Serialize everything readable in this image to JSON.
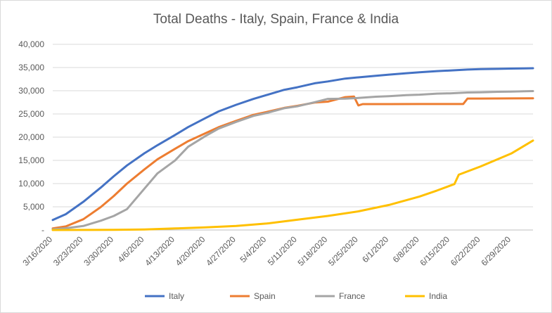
{
  "chart_data": {
    "type": "line",
    "title": "Total Deaths - Italy, Spain, France & India",
    "xlabel": "",
    "ylabel": "",
    "ylim": [
      0,
      40000
    ],
    "y_ticks": [
      "-",
      "5,000",
      "10,000",
      "15,000",
      "20,000",
      "25,000",
      "30,000",
      "35,000",
      "40,000"
    ],
    "x_ticks": [
      "3/16/2020",
      "3/23/2020",
      "3/30/2020",
      "4/6/2020",
      "4/13/2020",
      "4/20/2020",
      "4/27/2020",
      "5/4/2020",
      "5/11/2020",
      "5/18/2020",
      "5/25/2020",
      "6/1/2020",
      "6/8/2020",
      "6/15/2020",
      "6/22/2020",
      "6/29/2020"
    ],
    "x_start": "3/16/2020",
    "x_end": "7/4/2020",
    "grid": true,
    "legend_position": "bottom",
    "series": [
      {
        "name": "Italy",
        "color": "#4472c4",
        "points": [
          [
            "3/16/2020",
            2158
          ],
          [
            "3/19/2020",
            3405
          ],
          [
            "3/23/2020",
            6077
          ],
          [
            "3/27/2020",
            9134
          ],
          [
            "3/30/2020",
            11591
          ],
          [
            "4/2/2020",
            13915
          ],
          [
            "4/6/2020",
            16523
          ],
          [
            "4/9/2020",
            18279
          ],
          [
            "4/13/2020",
            20465
          ],
          [
            "4/16/2020",
            22170
          ],
          [
            "4/20/2020",
            24114
          ],
          [
            "4/23/2020",
            25549
          ],
          [
            "4/27/2020",
            26977
          ],
          [
            "5/1/2020",
            28236
          ],
          [
            "5/4/2020",
            29079
          ],
          [
            "5/8/2020",
            30201
          ],
          [
            "5/11/2020",
            30739
          ],
          [
            "5/15/2020",
            31610
          ],
          [
            "5/18/2020",
            32007
          ],
          [
            "5/22/2020",
            32616
          ],
          [
            "5/25/2020",
            32877
          ],
          [
            "5/29/2020",
            33229
          ],
          [
            "6/1/2020",
            33475
          ],
          [
            "6/5/2020",
            33774
          ],
          [
            "6/8/2020",
            33964
          ],
          [
            "6/12/2020",
            34223
          ],
          [
            "6/15/2020",
            34371
          ],
          [
            "6/19/2020",
            34561
          ],
          [
            "6/22/2020",
            34657
          ],
          [
            "6/26/2020",
            34716
          ],
          [
            "6/29/2020",
            34767
          ],
          [
            "7/2/2020",
            34818
          ],
          [
            "7/4/2020",
            34854
          ]
        ]
      },
      {
        "name": "Spain",
        "color": "#ed7d31",
        "points": [
          [
            "3/16/2020",
            342
          ],
          [
            "3/19/2020",
            767
          ],
          [
            "3/23/2020",
            2311
          ],
          [
            "3/27/2020",
            4934
          ],
          [
            "3/30/2020",
            7340
          ],
          [
            "4/2/2020",
            10003
          ],
          [
            "4/6/2020",
            13055
          ],
          [
            "4/9/2020",
            15238
          ],
          [
            "4/13/2020",
            17489
          ],
          [
            "4/16/2020",
            19130
          ],
          [
            "4/20/2020",
            20852
          ],
          [
            "4/23/2020",
            22157
          ],
          [
            "4/27/2020",
            23521
          ],
          [
            "5/1/2020",
            24824
          ],
          [
            "5/4/2020",
            25428
          ],
          [
            "5/8/2020",
            26299
          ],
          [
            "5/11/2020",
            26744
          ],
          [
            "5/15/2020",
            27459
          ],
          [
            "5/18/2020",
            27650
          ],
          [
            "5/22/2020",
            28628
          ],
          [
            "5/24/2020",
            28752
          ],
          [
            "5/25/2020",
            26834
          ],
          [
            "5/26/2020",
            27117
          ],
          [
            "6/1/2020",
            27127
          ],
          [
            "6/8/2020",
            27136
          ],
          [
            "6/15/2020",
            27136
          ],
          [
            "6/18/2020",
            27136
          ],
          [
            "6/19/2020",
            28315
          ],
          [
            "6/22/2020",
            28324
          ],
          [
            "6/29/2020",
            28346
          ],
          [
            "7/4/2020",
            28385
          ]
        ]
      },
      {
        "name": "France",
        "color": "#a5a5a5",
        "points": [
          [
            "3/16/2020",
            148
          ],
          [
            "3/19/2020",
            372
          ],
          [
            "3/23/2020",
            860
          ],
          [
            "3/27/2020",
            1995
          ],
          [
            "3/30/2020",
            3024
          ],
          [
            "4/2/2020",
            4503
          ],
          [
            "4/6/2020",
            8911
          ],
          [
            "4/9/2020",
            12210
          ],
          [
            "4/13/2020",
            14967
          ],
          [
            "4/16/2020",
            17920
          ],
          [
            "4/20/2020",
            20265
          ],
          [
            "4/23/2020",
            21856
          ],
          [
            "4/27/2020",
            23293
          ],
          [
            "5/1/2020",
            24594
          ],
          [
            "5/4/2020",
            25201
          ],
          [
            "5/8/2020",
            26230
          ],
          [
            "5/11/2020",
            26643
          ],
          [
            "5/15/2020",
            27529
          ],
          [
            "5/18/2020",
            28239
          ],
          [
            "5/22/2020",
            28289
          ],
          [
            "5/25/2020",
            28432
          ],
          [
            "5/29/2020",
            28714
          ],
          [
            "6/1/2020",
            28833
          ],
          [
            "6/5/2020",
            29065
          ],
          [
            "6/8/2020",
            29158
          ],
          [
            "6/12/2020",
            29374
          ],
          [
            "6/15/2020",
            29439
          ],
          [
            "6/19/2020",
            29617
          ],
          [
            "6/22/2020",
            29663
          ],
          [
            "6/26/2020",
            29778
          ],
          [
            "6/29/2020",
            29813
          ],
          [
            "7/2/2020",
            29875
          ],
          [
            "7/4/2020",
            29920
          ]
        ]
      },
      {
        "name": "India",
        "color": "#ffc000",
        "points": [
          [
            "3/16/2020",
            2
          ],
          [
            "3/23/2020",
            10
          ],
          [
            "3/30/2020",
            35
          ],
          [
            "4/6/2020",
            118
          ],
          [
            "4/13/2020",
            339
          ],
          [
            "4/20/2020",
            559
          ],
          [
            "4/27/2020",
            886
          ],
          [
            "5/4/2020",
            1389
          ],
          [
            "5/11/2020",
            2206
          ],
          [
            "5/18/2020",
            3029
          ],
          [
            "5/25/2020",
            4021
          ],
          [
            "6/1/2020",
            5394
          ],
          [
            "6/8/2020",
            7207
          ],
          [
            "6/12/2020",
            8498
          ],
          [
            "6/16/2020",
            9900
          ],
          [
            "6/17/2020",
            11903
          ],
          [
            "6/22/2020",
            13699
          ],
          [
            "6/29/2020",
            16475
          ],
          [
            "7/4/2020",
            19268
          ]
        ]
      }
    ]
  }
}
